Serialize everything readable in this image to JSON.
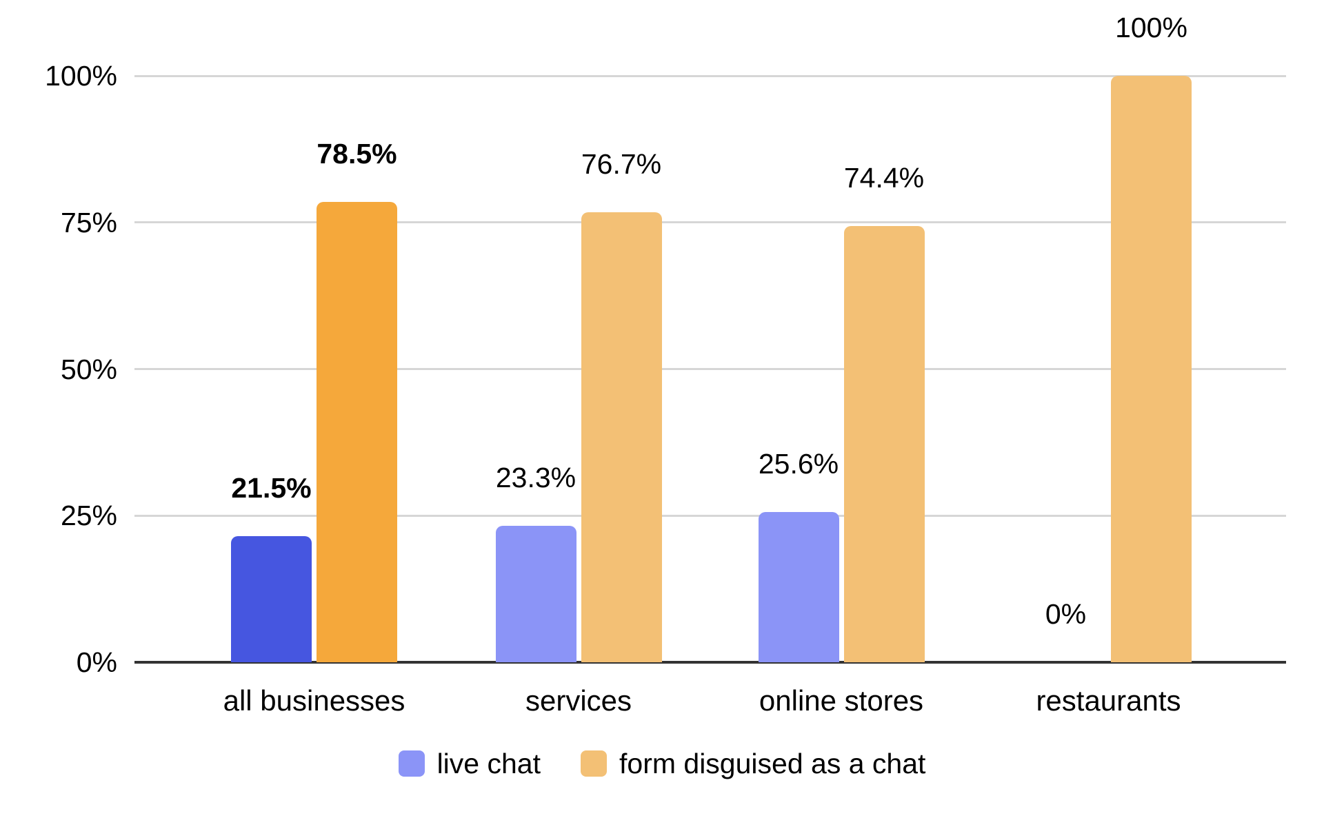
{
  "chart_data": {
    "type": "bar",
    "title": "",
    "categories": [
      "all businesses",
      "services",
      "online stores",
      "restaurants"
    ],
    "series": [
      {
        "name": "live chat",
        "values": [
          21.5,
          23.3,
          25.6,
          0
        ],
        "labels": [
          "21.5%",
          "23.3%",
          "25.6%",
          "0%"
        ],
        "color": "#8B94F7",
        "color_emphasized": "#4656E0"
      },
      {
        "name": "form disguised as a chat",
        "values": [
          78.5,
          76.7,
          74.4,
          100
        ],
        "labels": [
          "78.5%",
          "76.7%",
          "74.4%",
          "100%"
        ],
        "color": "#F3C075",
        "color_emphasized": "#F5A83B"
      }
    ],
    "emphasized_category_index": 0,
    "y_axis": {
      "ticks": [
        {
          "label": "100%",
          "value": 100
        },
        {
          "label": "75%",
          "value": 75
        },
        {
          "label": "50%",
          "value": 50
        },
        {
          "label": "25%",
          "value": 25
        },
        {
          "label": "0%",
          "value": 0
        }
      ],
      "ylim": [
        0,
        100
      ]
    },
    "grid": true,
    "legend_position": "bottom",
    "value_label_format": "percent"
  },
  "legend": {
    "items": [
      {
        "label": "live chat",
        "swatch_color": "#8B94F7"
      },
      {
        "label": "form disguised as a chat",
        "swatch_color": "#F3C075"
      }
    ]
  },
  "colors": {
    "background": "#FFFFFF",
    "gridline": "#D6D6D6",
    "axis": "#333333",
    "text": "#000000"
  }
}
